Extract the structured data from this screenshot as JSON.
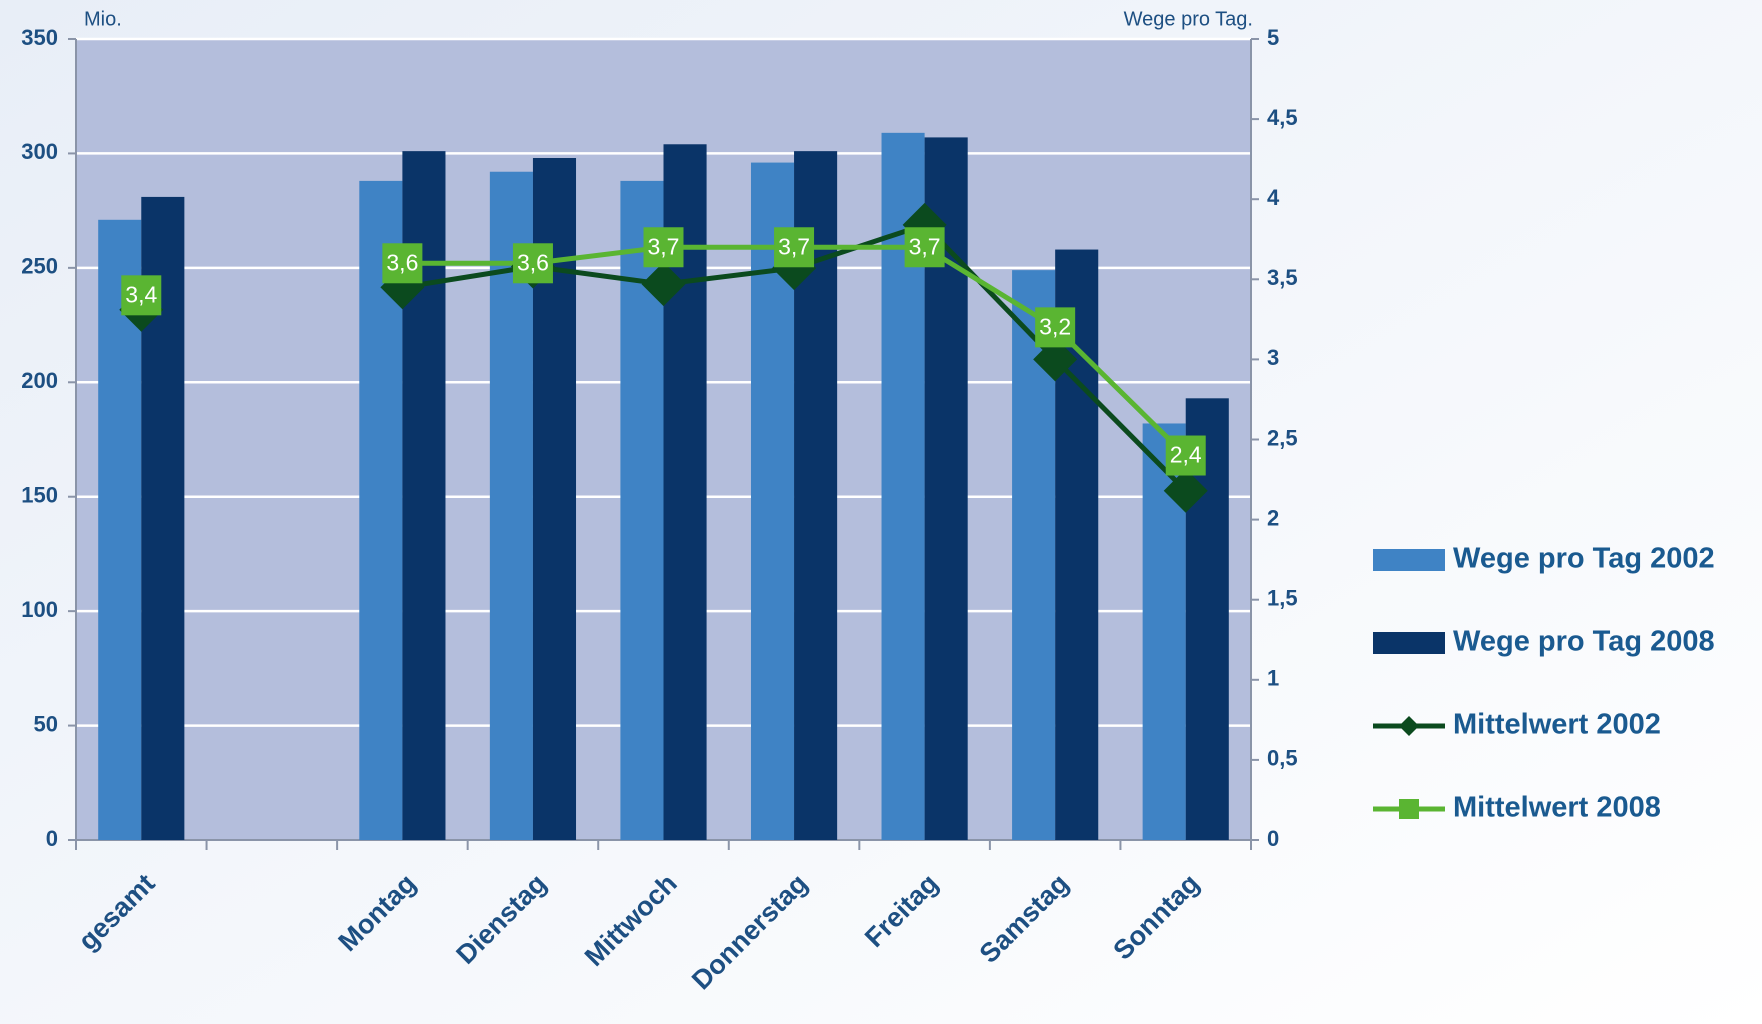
{
  "chart_data": {
    "type": "bar",
    "ylabel": "Mio.",
    "y2label": "Wege pro Tag.",
    "categories": [
      "gesamt",
      null,
      "Montag",
      "Dienstag",
      "Mittwoch",
      "Donnerstag",
      "Freitag",
      "Samstag",
      "Sonntag"
    ],
    "series": [
      {
        "name": "Wege pro Tag 2002",
        "type": "bar",
        "color": "#3f83c5",
        "values": [
          271,
          null,
          288,
          292,
          288,
          296,
          309,
          249,
          182
        ]
      },
      {
        "name": "Wege pro Tag 2008",
        "type": "bar",
        "color": "#0a3468",
        "values": [
          281,
          null,
          301,
          298,
          304,
          301,
          307,
          258,
          193
        ]
      },
      {
        "name": "Mittelwert 2002",
        "type": "line",
        "marker": "diamond",
        "axis": "y2",
        "color": "#0b4a1e",
        "values": [
          3.31,
          null,
          3.45,
          3.58,
          3.47,
          3.57,
          3.84,
          3.0,
          2.18
        ]
      },
      {
        "name": "Mittelwert 2008",
        "type": "line",
        "marker": "square",
        "axis": "y2",
        "color": "#5ab532",
        "values": [
          3.4,
          null,
          3.6,
          3.6,
          3.7,
          3.7,
          3.7,
          3.2,
          2.4
        ],
        "value_labels": [
          "3,4",
          null,
          "3,6",
          "3,6",
          "3,7",
          "3,7",
          "3,7",
          "3,2",
          "2,4"
        ]
      }
    ],
    "ylim": [
      0,
      350
    ],
    "yticks": [
      0,
      50,
      100,
      150,
      200,
      250,
      300,
      350
    ],
    "y2lim": [
      0,
      5
    ],
    "y2ticks": [
      0,
      {
        "value": 0.5,
        "label": "0,5"
      },
      1,
      {
        "value": 1.5,
        "label": "1,5"
      },
      2,
      {
        "value": 2.5,
        "label": "2,5"
      },
      3,
      {
        "value": 3.5,
        "label": "3,5"
      },
      4,
      {
        "value": 4.5,
        "label": "4,5"
      },
      5
    ],
    "grid": true,
    "legend": "right"
  }
}
